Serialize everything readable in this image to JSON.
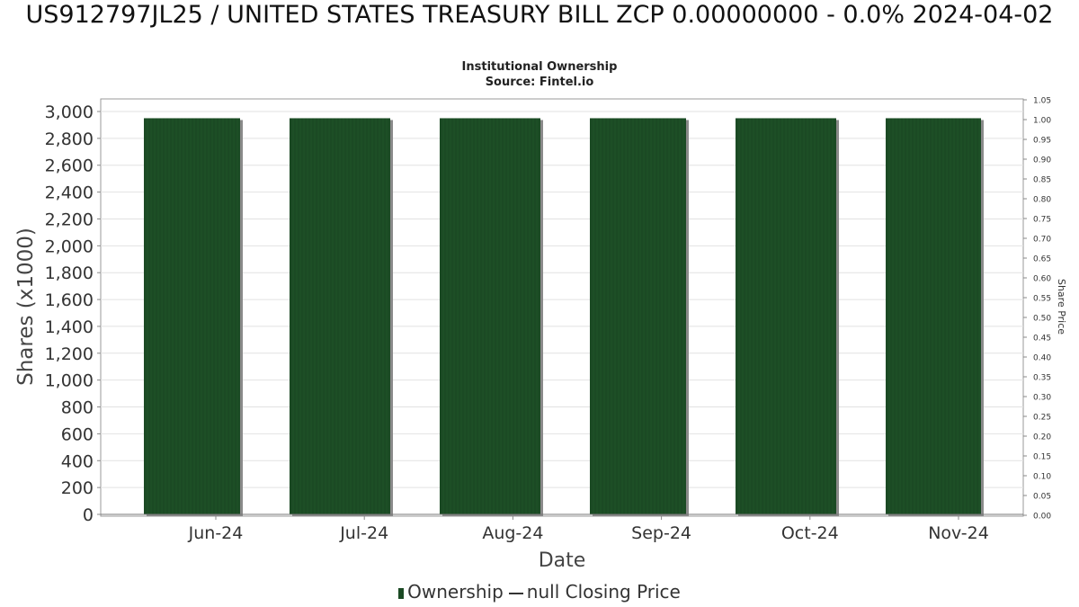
{
  "chart_data": {
    "type": "bar",
    "title": "US912797JL25 / UNITED STATES TREASURY BILL ZCP 0.00000000 - 0.0% 2024-04-02",
    "subtitle_1": "Institutional Ownership",
    "subtitle_2": "Source: Fintel.io",
    "xlabel": "Date",
    "ylabel": "Shares (x1000)",
    "y2label": "Share Price",
    "categories": [
      "Jun-24",
      "Jul-24",
      "Aug-24",
      "Sep-24",
      "Oct-24",
      "Nov-24"
    ],
    "series": [
      {
        "name": "Ownership",
        "values": [
          2950,
          2950,
          2950,
          2950,
          2950,
          2950
        ],
        "color": "#1b4a24"
      }
    ],
    "ylim": [
      0,
      3000
    ],
    "yticks": [
      0,
      200,
      400,
      600,
      800,
      1000,
      1200,
      1400,
      1600,
      1800,
      2000,
      2200,
      2400,
      2600,
      2800,
      3000
    ],
    "ytick_labels": [
      "0",
      "200",
      "400",
      "600",
      "800",
      "1,000",
      "1,200",
      "1,400",
      "1,600",
      "1,800",
      "2,000",
      "2,200",
      "2,400",
      "2,600",
      "2,800",
      "3,000"
    ],
    "y2lim": [
      0,
      1.05
    ],
    "y2ticks": [
      "0.00",
      "0.05",
      "0.10",
      "0.15",
      "0.20",
      "0.25",
      "0.30",
      "0.35",
      "0.40",
      "0.45",
      "0.50",
      "0.55",
      "0.60",
      "0.65",
      "0.70",
      "0.75",
      "0.80",
      "0.85",
      "0.90",
      "0.95",
      "1.00",
      "1.05"
    ],
    "grid": true,
    "legend_placement": "bottom",
    "legend": {
      "ownership_label": "Ownership",
      "price_label": "null Closing Price"
    }
  }
}
